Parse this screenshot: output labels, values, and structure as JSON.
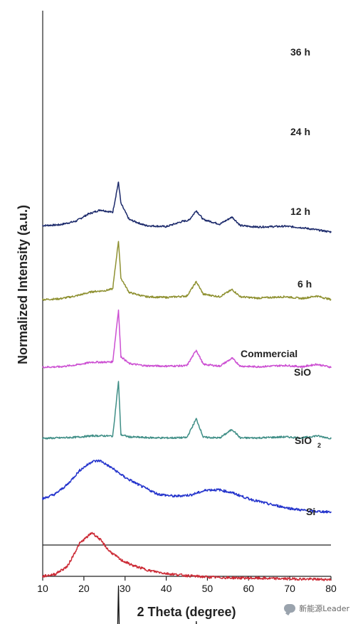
{
  "chart_data": {
    "type": "line",
    "xlabel": "2 Theta (degree)",
    "ylabel": "Normalized Intensity (a.u.)",
    "xlim": [
      10,
      80
    ],
    "xticks": [
      10,
      20,
      30,
      40,
      50,
      60,
      70,
      80
    ],
    "grid": false,
    "series": [
      {
        "name": "36 h",
        "color": "#1c2a6b",
        "offset": 880,
        "values": [
          [
            10,
            18
          ],
          [
            14,
            20
          ],
          [
            18,
            30
          ],
          [
            21,
            50
          ],
          [
            24,
            62
          ],
          [
            27,
            55
          ],
          [
            28.4,
            140
          ],
          [
            29,
            80
          ],
          [
            31,
            35
          ],
          [
            35,
            18
          ],
          [
            40,
            15
          ],
          [
            44,
            30
          ],
          [
            45.5,
            33
          ],
          [
            47.3,
            60
          ],
          [
            49,
            35
          ],
          [
            53,
            22
          ],
          [
            56,
            42
          ],
          [
            58,
            18
          ],
          [
            62,
            14
          ],
          [
            69,
            16
          ],
          [
            73,
            12
          ],
          [
            80,
            0
          ]
        ]
      },
      {
        "name": "24 h",
        "color": "#8f9132",
        "offset": 690,
        "values": [
          [
            10,
            0
          ],
          [
            14,
            2
          ],
          [
            18,
            10
          ],
          [
            22,
            22
          ],
          [
            25,
            25
          ],
          [
            27,
            30
          ],
          [
            28.4,
            165
          ],
          [
            29,
            60
          ],
          [
            31,
            20
          ],
          [
            35,
            8
          ],
          [
            40,
            6
          ],
          [
            45,
            10
          ],
          [
            47.3,
            50
          ],
          [
            49,
            15
          ],
          [
            53,
            8
          ],
          [
            56,
            28
          ],
          [
            58,
            8
          ],
          [
            62,
            4
          ],
          [
            69,
            8
          ],
          [
            73,
            3
          ],
          [
            76.5,
            10
          ],
          [
            80,
            0
          ]
        ]
      },
      {
        "name": "12 h",
        "color": "#cc4fd2",
        "offset": 500,
        "values": [
          [
            10,
            0
          ],
          [
            14,
            1
          ],
          [
            18,
            6
          ],
          [
            22,
            14
          ],
          [
            25,
            14
          ],
          [
            27,
            15
          ],
          [
            28.4,
            160
          ],
          [
            29,
            30
          ],
          [
            31,
            10
          ],
          [
            35,
            4
          ],
          [
            40,
            3
          ],
          [
            45,
            4
          ],
          [
            47.3,
            48
          ],
          [
            49,
            8
          ],
          [
            53,
            3
          ],
          [
            56,
            25
          ],
          [
            58,
            3
          ],
          [
            62,
            1
          ],
          [
            69,
            5
          ],
          [
            73,
            1
          ],
          [
            76.5,
            8
          ],
          [
            80,
            0
          ]
        ]
      },
      {
        "name": "6 h",
        "color": "#3f8e86",
        "offset": 300,
        "values": [
          [
            10,
            0
          ],
          [
            14,
            1
          ],
          [
            18,
            3
          ],
          [
            22,
            7
          ],
          [
            25,
            7
          ],
          [
            27,
            6
          ],
          [
            28.4,
            160
          ],
          [
            29,
            10
          ],
          [
            31,
            4
          ],
          [
            35,
            2
          ],
          [
            40,
            1
          ],
          [
            45,
            2
          ],
          [
            47.3,
            55
          ],
          [
            49,
            3
          ],
          [
            53,
            1
          ],
          [
            56,
            25
          ],
          [
            58,
            1
          ],
          [
            62,
            1
          ],
          [
            69,
            4
          ],
          [
            73,
            1
          ],
          [
            76.5,
            7
          ],
          [
            80,
            0
          ]
        ]
      },
      {
        "name": "Commercial SiO",
        "color": "#2434cc",
        "offset": 75,
        "values": [
          [
            10,
            55
          ],
          [
            13,
            68
          ],
          [
            16,
            95
          ],
          [
            19,
            135
          ],
          [
            22,
            160
          ],
          [
            24,
            162
          ],
          [
            27,
            140
          ],
          [
            30,
            115
          ],
          [
            34,
            90
          ],
          [
            38,
            68
          ],
          [
            42,
            62
          ],
          [
            46,
            66
          ],
          [
            50,
            80
          ],
          [
            53,
            80
          ],
          [
            56,
            72
          ],
          [
            60,
            55
          ],
          [
            65,
            40
          ],
          [
            70,
            28
          ],
          [
            75,
            20
          ],
          [
            80,
            18
          ]
        ]
      },
      {
        "name": "SiO₂",
        "color": "#cc2b36",
        "offset": -120,
        "values": [
          [
            10,
            32
          ],
          [
            13,
            38
          ],
          [
            16,
            60
          ],
          [
            19,
            125
          ],
          [
            22,
            155
          ],
          [
            24,
            135
          ],
          [
            26,
            105
          ],
          [
            29,
            78
          ],
          [
            32,
            62
          ],
          [
            36,
            48
          ],
          [
            40,
            40
          ],
          [
            45,
            34
          ],
          [
            50,
            30
          ],
          [
            55,
            28
          ],
          [
            60,
            27
          ],
          [
            65,
            26
          ],
          [
            70,
            25
          ],
          [
            75,
            24
          ],
          [
            80,
            23
          ]
        ]
      },
      {
        "name": "Si",
        "color": "#111111",
        "offset": -300,
        "values": [
          [
            10,
            0
          ],
          [
            28.1,
            0
          ],
          [
            28.4,
            185
          ],
          [
            28.7,
            0
          ],
          [
            47.0,
            0
          ],
          [
            47.3,
            85
          ],
          [
            47.6,
            0
          ],
          [
            55.8,
            0
          ],
          [
            56.1,
            38
          ],
          [
            56.4,
            0
          ],
          [
            69,
            0
          ],
          [
            69.1,
            6
          ],
          [
            69.3,
            0
          ],
          [
            76.2,
            0
          ],
          [
            76.4,
            10
          ],
          [
            76.6,
            0
          ],
          [
            80,
            0
          ]
        ]
      }
    ],
    "labels": [
      {
        "text": "36 h"
      },
      {
        "text": "24 h"
      },
      {
        "text": "12 h"
      },
      {
        "text": "6 h"
      },
      {
        "text": "Commercial"
      },
      {
        "text": "SiO"
      },
      {
        "text": "SiO"
      },
      {
        "text": "2"
      },
      {
        "text": "Si"
      }
    ]
  },
  "watermark": {
    "icon": "chat-bubble-icon",
    "text": "新能源Leader"
  }
}
